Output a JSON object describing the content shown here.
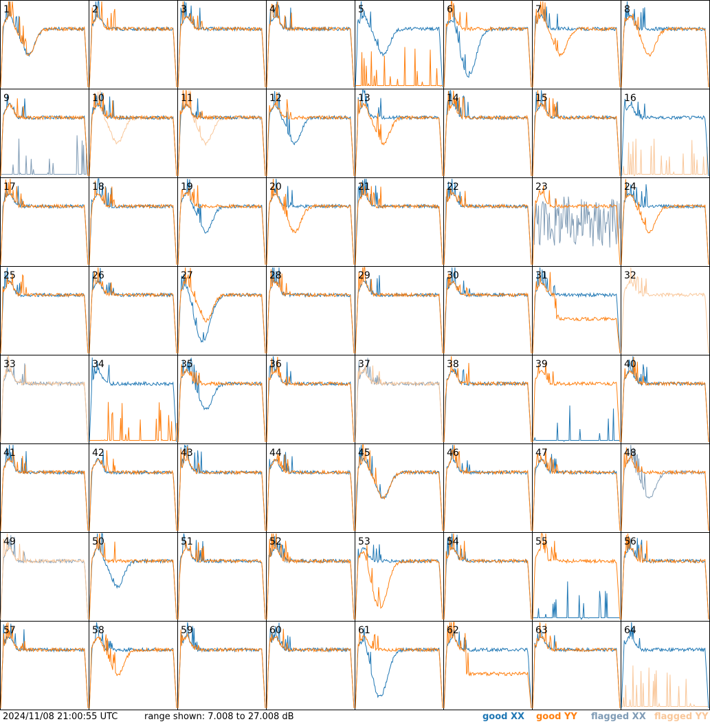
{
  "footer": {
    "timestamp": "2024/11/08 21:00:55 UTC",
    "range_text": "range shown: 7.008 to 27.008 dB"
  },
  "legend": {
    "good_xx": "good XX",
    "good_yy": "good YY",
    "flagged_xx": "flagged XX",
    "flagged_yy": "flagged YY"
  },
  "colors": {
    "good_xx": "#1f77b4",
    "good_yy": "#ff7f0e",
    "flagged_xx": "#7f9bb5",
    "flagged_yy": "#f9c79a"
  },
  "chart_data": {
    "type": "line",
    "grid": "8x8 small multiples",
    "ylim": [
      7.008,
      27.008
    ],
    "yunit": "dB",
    "panels": [
      {
        "label": "1",
        "xx": "dip",
        "yy": "dip",
        "ff": "none"
      },
      {
        "label": "2",
        "xx": "flat",
        "yy": "flat",
        "ff": "none"
      },
      {
        "label": "3",
        "xx": "flat",
        "yy": "flat",
        "ff": "none"
      },
      {
        "label": "4",
        "xx": "flat",
        "yy": "flat",
        "ff": "none"
      },
      {
        "label": "5",
        "xx": "dip",
        "yy": "spikes",
        "ff": "none"
      },
      {
        "label": "6",
        "xx": "deepdip",
        "yy": "flat",
        "ff": "none"
      },
      {
        "label": "7",
        "xx": "flat",
        "yy": "dip",
        "ff": "none"
      },
      {
        "label": "8",
        "xx": "flat",
        "yy": "dip",
        "ff": "none"
      },
      {
        "label": "9",
        "xx": "flat",
        "yy": "flat",
        "ff": "xxspikes"
      },
      {
        "label": "10",
        "xx": "flat",
        "yy": "flat",
        "ff": "yydip"
      },
      {
        "label": "11",
        "xx": "flat",
        "yy": "flat",
        "ff": "yydip"
      },
      {
        "label": "12",
        "xx": "dip",
        "yy": "flat",
        "ff": "none"
      },
      {
        "label": "13",
        "xx": "flat",
        "yy": "dip",
        "ff": "none"
      },
      {
        "label": "14",
        "xx": "flat",
        "yy": "flat",
        "ff": "none"
      },
      {
        "label": "15",
        "xx": "flat",
        "yy": "flat",
        "ff": "none"
      },
      {
        "label": "16",
        "xx": "flat",
        "yy": "none",
        "ff": "yyspike"
      },
      {
        "label": "17",
        "xx": "flat",
        "yy": "flat",
        "ff": "none"
      },
      {
        "label": "18",
        "xx": "flat",
        "yy": "flat",
        "ff": "none"
      },
      {
        "label": "19",
        "xx": "dip",
        "yy": "flat",
        "ff": "none"
      },
      {
        "label": "20",
        "xx": "flat",
        "yy": "dip",
        "ff": "none"
      },
      {
        "label": "21",
        "xx": "flat",
        "yy": "flat",
        "ff": "none"
      },
      {
        "label": "22",
        "xx": "flat",
        "yy": "flat",
        "ff": "none"
      },
      {
        "label": "23",
        "xx": "none",
        "yy": "flat",
        "ff": "xxnoise"
      },
      {
        "label": "24",
        "xx": "flat",
        "yy": "dip",
        "ff": "none"
      },
      {
        "label": "25",
        "xx": "flat",
        "yy": "flat",
        "ff": "none"
      },
      {
        "label": "26",
        "xx": "flat",
        "yy": "flat",
        "ff": "none"
      },
      {
        "label": "27",
        "xx": "deepdip",
        "yy": "dip",
        "ff": "none"
      },
      {
        "label": "28",
        "xx": "flat",
        "yy": "flat",
        "ff": "none"
      },
      {
        "label": "29",
        "xx": "flat",
        "yy": "flat",
        "ff": "none"
      },
      {
        "label": "30",
        "xx": "flat",
        "yy": "flat",
        "ff": "none"
      },
      {
        "label": "31",
        "xx": "flat",
        "yy": "low",
        "ff": "none"
      },
      {
        "label": "32",
        "xx": "none",
        "yy": "none",
        "ff": "yyflat"
      },
      {
        "label": "33",
        "xx": "none",
        "yy": "none",
        "ff": "both"
      },
      {
        "label": "34",
        "xx": "flat",
        "yy": "spikes",
        "ff": "none"
      },
      {
        "label": "35",
        "xx": "dip",
        "yy": "flat",
        "ff": "none"
      },
      {
        "label": "36",
        "xx": "flat",
        "yy": "flat",
        "ff": "none"
      },
      {
        "label": "37",
        "xx": "none",
        "yy": "none",
        "ff": "both"
      },
      {
        "label": "38",
        "xx": "flat",
        "yy": "flat",
        "ff": "none"
      },
      {
        "label": "39",
        "xx": "spikes",
        "yy": "flat",
        "ff": "none"
      },
      {
        "label": "40",
        "xx": "flat",
        "yy": "flat",
        "ff": "none"
      },
      {
        "label": "41",
        "xx": "flat",
        "yy": "flat",
        "ff": "none"
      },
      {
        "label": "42",
        "xx": "flat",
        "yy": "flat",
        "ff": "none"
      },
      {
        "label": "43",
        "xx": "flat",
        "yy": "flat",
        "ff": "none"
      },
      {
        "label": "44",
        "xx": "flat",
        "yy": "flat",
        "ff": "none"
      },
      {
        "label": "45",
        "xx": "dip",
        "yy": "dip",
        "ff": "none"
      },
      {
        "label": "46",
        "xx": "flat",
        "yy": "flat",
        "ff": "none"
      },
      {
        "label": "47",
        "xx": "flat",
        "yy": "flat",
        "ff": "none"
      },
      {
        "label": "48",
        "xx": "none",
        "yy": "flat",
        "ff": "xxdip"
      },
      {
        "label": "49",
        "xx": "none",
        "yy": "none",
        "ff": "both"
      },
      {
        "label": "50",
        "xx": "dip",
        "yy": "flat",
        "ff": "none"
      },
      {
        "label": "51",
        "xx": "flat",
        "yy": "flat",
        "ff": "none"
      },
      {
        "label": "52",
        "xx": "flat",
        "yy": "flat",
        "ff": "none"
      },
      {
        "label": "53",
        "xx": "flat",
        "yy": "deepdip",
        "ff": "none"
      },
      {
        "label": "54",
        "xx": "flat",
        "yy": "flat",
        "ff": "none"
      },
      {
        "label": "55",
        "xx": "spikes",
        "yy": "flat",
        "ff": "none"
      },
      {
        "label": "56",
        "xx": "flat",
        "yy": "flat",
        "ff": "none"
      },
      {
        "label": "57",
        "xx": "flat",
        "yy": "flat",
        "ff": "none"
      },
      {
        "label": "58",
        "xx": "flat",
        "yy": "dip",
        "ff": "none"
      },
      {
        "label": "59",
        "xx": "flat",
        "yy": "flat",
        "ff": "none"
      },
      {
        "label": "60",
        "xx": "flat",
        "yy": "flat",
        "ff": "none"
      },
      {
        "label": "61",
        "xx": "deepdip",
        "yy": "flat",
        "ff": "none"
      },
      {
        "label": "62",
        "xx": "flat",
        "yy": "low",
        "ff": "none"
      },
      {
        "label": "63",
        "xx": "flat",
        "yy": "flat",
        "ff": "none"
      },
      {
        "label": "64",
        "xx": "flat",
        "yy": "none",
        "ff": "yyspike"
      }
    ]
  }
}
